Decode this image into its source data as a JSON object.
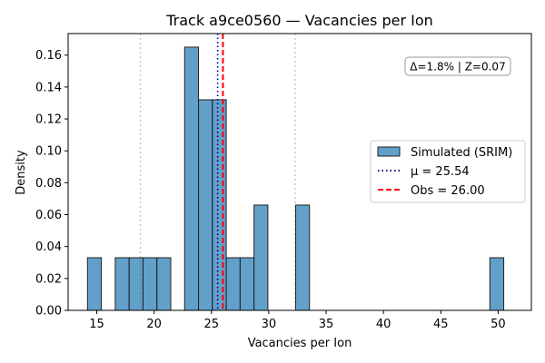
{
  "chart_data": {
    "type": "bar",
    "title": "Track a9ce0560 — Vacancies per Ion",
    "xlabel": "Vacancies per Ion",
    "ylabel": "Density",
    "xlim": [
      12.5,
      52.9
    ],
    "ylim": [
      0,
      0.1735
    ],
    "xticks": [
      15,
      20,
      25,
      30,
      35,
      40,
      45,
      50
    ],
    "yticks": [
      0.0,
      0.02,
      0.04,
      0.06,
      0.08,
      0.1,
      0.12,
      0.14,
      0.16
    ],
    "ytick_labels": [
      "0.00",
      "0.02",
      "0.04",
      "0.06",
      "0.08",
      "0.10",
      "0.12",
      "0.14",
      "0.16"
    ],
    "grid": false,
    "legend_position": "center-right",
    "histogram": {
      "name": "Simulated (SRIM)",
      "color": "#1f77b4",
      "bin_width": 1.21,
      "bins": [
        {
          "x0": 14.19,
          "density": 0.033
        },
        {
          "x0": 16.61,
          "density": 0.033
        },
        {
          "x0": 17.82,
          "density": 0.033
        },
        {
          "x0": 19.03,
          "density": 0.033
        },
        {
          "x0": 20.24,
          "density": 0.033
        },
        {
          "x0": 22.66,
          "density": 0.165
        },
        {
          "x0": 23.87,
          "density": 0.132
        },
        {
          "x0": 25.08,
          "density": 0.132
        },
        {
          "x0": 26.29,
          "density": 0.033
        },
        {
          "x0": 27.5,
          "density": 0.033
        },
        {
          "x0": 28.71,
          "density": 0.066
        },
        {
          "x0": 32.34,
          "density": 0.066
        },
        {
          "x0": 49.28,
          "density": 0.033
        }
      ]
    },
    "mean_line": {
      "name": "μ = 25.54",
      "x": 25.54,
      "color": "#00008b",
      "style": "dotted"
    },
    "obs_line": {
      "name": "Obs = 26.00",
      "x": 26.0,
      "color": "#ff0000",
      "style": "dashed"
    },
    "sigma_lines": [
      {
        "x": 18.8,
        "color": "#c0c0c0",
        "style": "dotted"
      },
      {
        "x": 32.3,
        "color": "#c0c0c0",
        "style": "dotted"
      }
    ],
    "annotation": "Δ=1.8% | Z=0.07"
  }
}
